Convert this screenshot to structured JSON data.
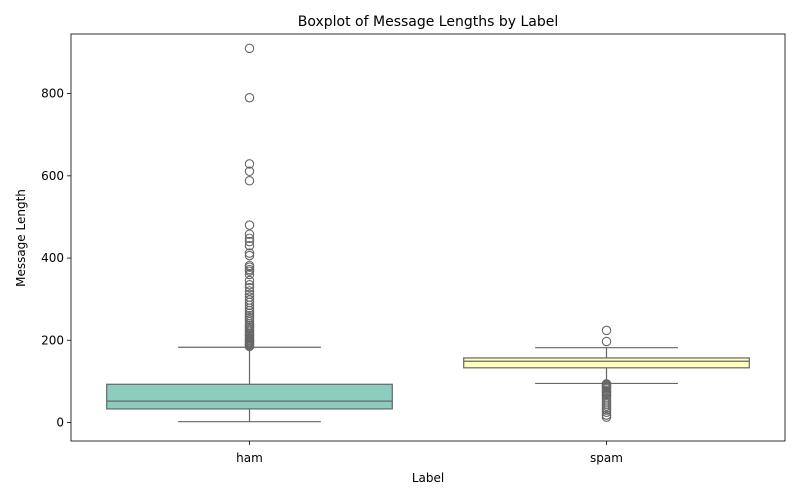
{
  "chart_data": {
    "type": "box",
    "title": "Boxplot of Message Lengths by Label",
    "xlabel": "Label",
    "ylabel": "Message Length",
    "ylim": [
      -45,
      945
    ],
    "yticks": [
      0,
      200,
      400,
      600,
      800
    ],
    "grid": false,
    "legend": "none",
    "categories": [
      "ham",
      "spam"
    ],
    "boxes": [
      {
        "category": "ham",
        "color": "#8dcdbf",
        "whisker_low": 2,
        "q1": 33,
        "median": 52,
        "q3": 93,
        "whisker_high": 183,
        "outliers": [
          185,
          188,
          190,
          193,
          195,
          198,
          200,
          203,
          206,
          210,
          213,
          216,
          220,
          224,
          228,
          232,
          236,
          240,
          245,
          250,
          255,
          260,
          266,
          272,
          278,
          285,
          292,
          298,
          305,
          312,
          320,
          328,
          335,
          345,
          360,
          368,
          372,
          378,
          382,
          406,
          412,
          430,
          440,
          448,
          458,
          480,
          588,
          611,
          629,
          790,
          910
        ]
      },
      {
        "category": "spam",
        "color": "#ffffbe",
        "whisker_low": 95,
        "q1": 133,
        "median": 149,
        "q3": 157,
        "whisker_high": 182,
        "outliers": [
          13,
          18,
          25,
          30,
          35,
          40,
          45,
          50,
          55,
          60,
          65,
          68,
          72,
          75,
          78,
          82,
          85,
          88,
          90,
          92,
          94,
          197,
          224
        ]
      }
    ]
  },
  "colors": {
    "line": "#666666",
    "outlier_edge": "#666666"
  }
}
